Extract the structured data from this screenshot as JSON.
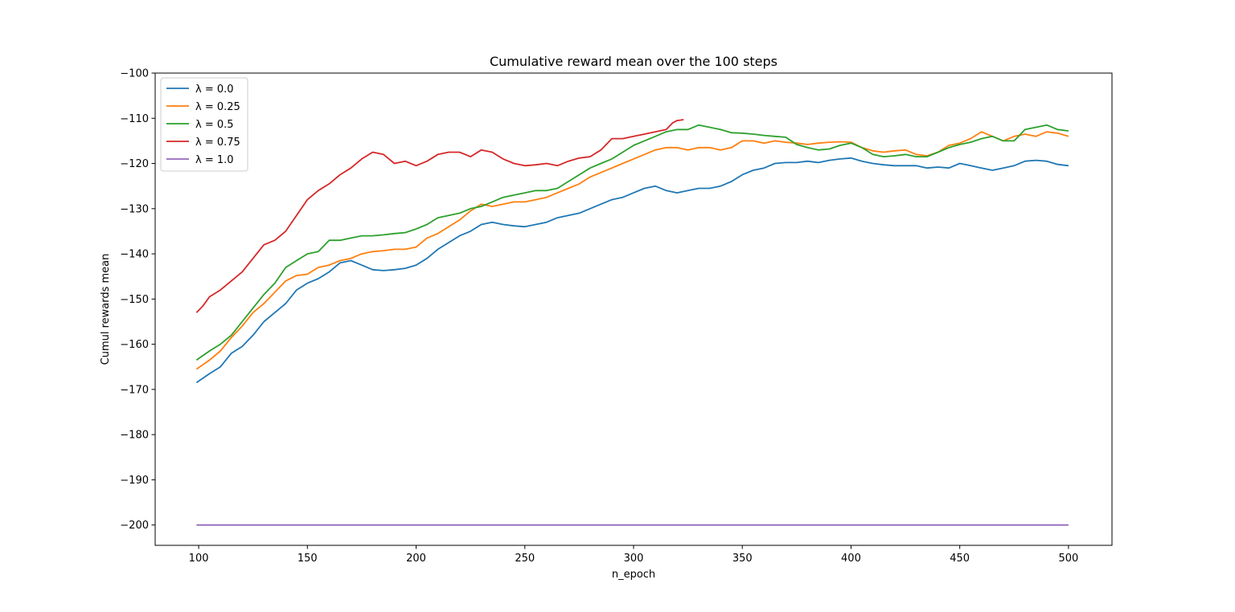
{
  "chart_data": {
    "type": "line",
    "title": "Cumulative reward mean over the 100 steps",
    "xlabel": "n_epoch",
    "ylabel": "Cumul rewards mean",
    "xlim": [
      80,
      520
    ],
    "ylim": [
      -204.5,
      -100
    ],
    "xticks": [
      100,
      150,
      200,
      250,
      300,
      350,
      400,
      450,
      500
    ],
    "yticks": [
      -200,
      -190,
      -180,
      -170,
      -160,
      -150,
      -140,
      -130,
      -120,
      -110,
      -100
    ],
    "xtick_labels": [
      "100",
      "150",
      "200",
      "250",
      "300",
      "350",
      "400",
      "450",
      "500"
    ],
    "ytick_labels": [
      "−200",
      "−190",
      "−180",
      "−170",
      "−160",
      "−150",
      "−140",
      "−130",
      "−120",
      "−110",
      "−100"
    ],
    "grid": false,
    "legend_position": "top-left",
    "series": [
      {
        "name": "λ = 0.0",
        "color": "#1f77b4",
        "points": [
          [
            99,
            -168.5
          ],
          [
            105,
            -166.5
          ],
          [
            110,
            -165
          ],
          [
            115,
            -162
          ],
          [
            120,
            -160.5
          ],
          [
            125,
            -158
          ],
          [
            130,
            -155
          ],
          [
            135,
            -153
          ],
          [
            140,
            -151
          ],
          [
            145,
            -148
          ],
          [
            150,
            -146.5
          ],
          [
            155,
            -145.5
          ],
          [
            160,
            -144
          ],
          [
            165,
            -142
          ],
          [
            170,
            -141.5
          ],
          [
            175,
            -142.5
          ],
          [
            180,
            -143.5
          ],
          [
            185,
            -143.7
          ],
          [
            190,
            -143.5
          ],
          [
            195,
            -143.2
          ],
          [
            200,
            -142.5
          ],
          [
            205,
            -141
          ],
          [
            210,
            -139
          ],
          [
            215,
            -137.5
          ],
          [
            220,
            -136
          ],
          [
            225,
            -135
          ],
          [
            230,
            -133.5
          ],
          [
            235,
            -133
          ],
          [
            240,
            -133.5
          ],
          [
            245,
            -133.8
          ],
          [
            250,
            -134
          ],
          [
            255,
            -133.5
          ],
          [
            260,
            -133
          ],
          [
            265,
            -132
          ],
          [
            270,
            -131.5
          ],
          [
            275,
            -131
          ],
          [
            280,
            -130
          ],
          [
            285,
            -129
          ],
          [
            290,
            -128
          ],
          [
            295,
            -127.5
          ],
          [
            300,
            -126.5
          ],
          [
            305,
            -125.5
          ],
          [
            310,
            -125
          ],
          [
            315,
            -126
          ],
          [
            320,
            -126.5
          ],
          [
            325,
            -126
          ],
          [
            330,
            -125.5
          ],
          [
            335,
            -125.5
          ],
          [
            340,
            -125
          ],
          [
            345,
            -124
          ],
          [
            350,
            -122.5
          ],
          [
            355,
            -121.5
          ],
          [
            360,
            -121
          ],
          [
            365,
            -120
          ],
          [
            370,
            -119.8
          ],
          [
            375,
            -119.8
          ],
          [
            380,
            -119.5
          ],
          [
            385,
            -119.8
          ],
          [
            390,
            -119.3
          ],
          [
            395,
            -119
          ],
          [
            400,
            -118.8
          ],
          [
            405,
            -119.5
          ],
          [
            410,
            -120
          ],
          [
            415,
            -120.3
          ],
          [
            420,
            -120.5
          ],
          [
            425,
            -120.5
          ],
          [
            430,
            -120.5
          ],
          [
            435,
            -121
          ],
          [
            440,
            -120.8
          ],
          [
            445,
            -121
          ],
          [
            450,
            -120
          ],
          [
            455,
            -120.5
          ],
          [
            460,
            -121
          ],
          [
            465,
            -121.5
          ],
          [
            470,
            -121
          ],
          [
            475,
            -120.5
          ],
          [
            480,
            -119.5
          ],
          [
            485,
            -119.3
          ],
          [
            490,
            -119.5
          ],
          [
            495,
            -120.2
          ],
          [
            500,
            -120.5
          ]
        ]
      },
      {
        "name": "λ = 0.25",
        "color": "#ff7f0e",
        "points": [
          [
            99,
            -165.5
          ],
          [
            105,
            -163.5
          ],
          [
            110,
            -161.5
          ],
          [
            115,
            -158.5
          ],
          [
            120,
            -156
          ],
          [
            125,
            -153
          ],
          [
            130,
            -151
          ],
          [
            135,
            -148.5
          ],
          [
            140,
            -146
          ],
          [
            145,
            -144.8
          ],
          [
            150,
            -144.5
          ],
          [
            155,
            -143
          ],
          [
            160,
            -142.5
          ],
          [
            165,
            -141.5
          ],
          [
            170,
            -141
          ],
          [
            175,
            -140
          ],
          [
            180,
            -139.5
          ],
          [
            185,
            -139.3
          ],
          [
            190,
            -139
          ],
          [
            195,
            -139
          ],
          [
            200,
            -138.5
          ],
          [
            205,
            -136.5
          ],
          [
            210,
            -135.5
          ],
          [
            215,
            -134
          ],
          [
            220,
            -132.5
          ],
          [
            225,
            -130.5
          ],
          [
            230,
            -129
          ],
          [
            235,
            -129.5
          ],
          [
            240,
            -129
          ],
          [
            245,
            -128.5
          ],
          [
            250,
            -128.5
          ],
          [
            255,
            -128
          ],
          [
            260,
            -127.5
          ],
          [
            265,
            -126.5
          ],
          [
            270,
            -125.5
          ],
          [
            275,
            -124.5
          ],
          [
            280,
            -123
          ],
          [
            285,
            -122
          ],
          [
            290,
            -121
          ],
          [
            295,
            -120
          ],
          [
            300,
            -119
          ],
          [
            305,
            -118
          ],
          [
            310,
            -117
          ],
          [
            315,
            -116.5
          ],
          [
            320,
            -116.5
          ],
          [
            325,
            -117
          ],
          [
            330,
            -116.5
          ],
          [
            335,
            -116.5
          ],
          [
            340,
            -117
          ],
          [
            345,
            -116.5
          ],
          [
            350,
            -115
          ],
          [
            355,
            -115
          ],
          [
            360,
            -115.5
          ],
          [
            365,
            -115
          ],
          [
            370,
            -115.3
          ],
          [
            375,
            -115.5
          ],
          [
            380,
            -115.8
          ],
          [
            385,
            -115.5
          ],
          [
            390,
            -115.3
          ],
          [
            395,
            -115.2
          ],
          [
            400,
            -115.3
          ],
          [
            405,
            -116.5
          ],
          [
            410,
            -117.2
          ],
          [
            415,
            -117.5
          ],
          [
            420,
            -117.2
          ],
          [
            425,
            -117
          ],
          [
            430,
            -118
          ],
          [
            435,
            -118.3
          ],
          [
            440,
            -117.5
          ],
          [
            445,
            -116
          ],
          [
            450,
            -115.5
          ],
          [
            455,
            -114.5
          ],
          [
            460,
            -113
          ],
          [
            465,
            -114
          ],
          [
            470,
            -115
          ],
          [
            475,
            -114
          ],
          [
            480,
            -113.5
          ],
          [
            485,
            -114
          ],
          [
            490,
            -113
          ],
          [
            495,
            -113.3
          ],
          [
            500,
            -114
          ]
        ]
      },
      {
        "name": "λ = 0.5",
        "color": "#2ca02c",
        "points": [
          [
            99,
            -163.5
          ],
          [
            105,
            -161.5
          ],
          [
            110,
            -160
          ],
          [
            115,
            -158
          ],
          [
            120,
            -155
          ],
          [
            125,
            -152
          ],
          [
            130,
            -149
          ],
          [
            135,
            -146.5
          ],
          [
            140,
            -143
          ],
          [
            145,
            -141.5
          ],
          [
            150,
            -140
          ],
          [
            155,
            -139.5
          ],
          [
            160,
            -137
          ],
          [
            165,
            -137
          ],
          [
            170,
            -136.5
          ],
          [
            175,
            -136
          ],
          [
            180,
            -136
          ],
          [
            185,
            -135.8
          ],
          [
            190,
            -135.5
          ],
          [
            195,
            -135.3
          ],
          [
            200,
            -134.5
          ],
          [
            205,
            -133.5
          ],
          [
            210,
            -132
          ],
          [
            215,
            -131.5
          ],
          [
            220,
            -131
          ],
          [
            225,
            -130
          ],
          [
            230,
            -129.5
          ],
          [
            235,
            -128.5
          ],
          [
            240,
            -127.5
          ],
          [
            245,
            -127
          ],
          [
            250,
            -126.5
          ],
          [
            255,
            -126
          ],
          [
            260,
            -126
          ],
          [
            265,
            -125.5
          ],
          [
            270,
            -124
          ],
          [
            275,
            -122.5
          ],
          [
            280,
            -121
          ],
          [
            285,
            -120
          ],
          [
            290,
            -119
          ],
          [
            295,
            -117.5
          ],
          [
            300,
            -116
          ],
          [
            305,
            -115
          ],
          [
            310,
            -114
          ],
          [
            315,
            -113
          ],
          [
            320,
            -112.5
          ],
          [
            325,
            -112.5
          ],
          [
            330,
            -111.5
          ],
          [
            335,
            -112
          ],
          [
            340,
            -112.5
          ],
          [
            345,
            -113.2
          ],
          [
            350,
            -113.3
          ],
          [
            355,
            -113.5
          ],
          [
            360,
            -113.8
          ],
          [
            365,
            -114
          ],
          [
            370,
            -114.2
          ],
          [
            375,
            -115.8
          ],
          [
            380,
            -116.5
          ],
          [
            385,
            -117
          ],
          [
            390,
            -116.8
          ],
          [
            395,
            -116
          ],
          [
            400,
            -115.5
          ],
          [
            405,
            -116.5
          ],
          [
            410,
            -118
          ],
          [
            415,
            -118.5
          ],
          [
            420,
            -118.3
          ],
          [
            425,
            -118
          ],
          [
            430,
            -118.5
          ],
          [
            435,
            -118.5
          ],
          [
            440,
            -117.5
          ],
          [
            445,
            -116.5
          ],
          [
            450,
            -115.8
          ],
          [
            455,
            -115.3
          ],
          [
            460,
            -114.5
          ],
          [
            465,
            -114
          ],
          [
            470,
            -115
          ],
          [
            475,
            -115
          ],
          [
            480,
            -112.5
          ],
          [
            485,
            -112
          ],
          [
            490,
            -111.5
          ],
          [
            495,
            -112.5
          ],
          [
            500,
            -112.8
          ]
        ]
      },
      {
        "name": "λ = 0.75",
        "color": "#d62728",
        "points": [
          [
            99,
            -153
          ],
          [
            102,
            -151.5
          ],
          [
            105,
            -149.5
          ],
          [
            110,
            -148
          ],
          [
            115,
            -146
          ],
          [
            120,
            -144
          ],
          [
            125,
            -141
          ],
          [
            130,
            -138
          ],
          [
            135,
            -137
          ],
          [
            140,
            -135
          ],
          [
            145,
            -131.5
          ],
          [
            150,
            -128
          ],
          [
            155,
            -126
          ],
          [
            160,
            -124.5
          ],
          [
            165,
            -122.5
          ],
          [
            170,
            -121
          ],
          [
            175,
            -119
          ],
          [
            180,
            -117.5
          ],
          [
            185,
            -118
          ],
          [
            190,
            -120
          ],
          [
            195,
            -119.5
          ],
          [
            200,
            -120.5
          ],
          [
            205,
            -119.5
          ],
          [
            210,
            -118
          ],
          [
            215,
            -117.5
          ],
          [
            220,
            -117.5
          ],
          [
            225,
            -118.5
          ],
          [
            230,
            -117
          ],
          [
            235,
            -117.5
          ],
          [
            240,
            -119
          ],
          [
            245,
            -120
          ],
          [
            250,
            -120.5
          ],
          [
            255,
            -120.3
          ],
          [
            260,
            -120
          ],
          [
            265,
            -120.5
          ],
          [
            270,
            -119.5
          ],
          [
            275,
            -118.8
          ],
          [
            280,
            -118.5
          ],
          [
            285,
            -117
          ],
          [
            290,
            -114.5
          ],
          [
            295,
            -114.5
          ],
          [
            300,
            -114
          ],
          [
            305,
            -113.5
          ],
          [
            310,
            -113
          ],
          [
            315,
            -112.5
          ],
          [
            318,
            -111
          ],
          [
            320,
            -110.5
          ],
          [
            323,
            -110.3
          ]
        ]
      },
      {
        "name": "λ = 1.0",
        "color": "#9467bd",
        "points": [
          [
            99,
            -200
          ],
          [
            500,
            -200
          ]
        ]
      }
    ]
  }
}
